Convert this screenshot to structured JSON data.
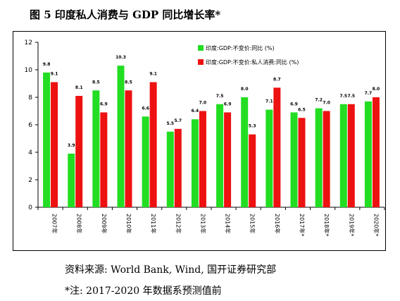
{
  "title": "图 5 印度私人消费与 GDP 同比增长率*",
  "source": "资料来源: World Bank, Wind, 国开证券研究部",
  "note": "*注: 2017-2020 年数据系预测值前",
  "chart_data": {
    "type": "bar",
    "categories": [
      "2007年",
      "2008年",
      "2009年",
      "2010年",
      "2011年",
      "2012年",
      "2013年",
      "2014年",
      "2015年",
      "2016年",
      "2017年*",
      "2018年*",
      "2019年*",
      "2020年*"
    ],
    "series": [
      {
        "name": "印度:GDP:不变价:同比 (%)",
        "color": "#22dd22",
        "values": [
          9.8,
          3.9,
          8.5,
          10.3,
          6.6,
          5.5,
          6.4,
          7.5,
          8.0,
          7.1,
          6.9,
          7.2,
          7.5,
          7.7
        ]
      },
      {
        "name": "印度:GDP:不变价:私人消费:同比 (%)",
        "color": "#ee1111",
        "values": [
          9.1,
          8.1,
          6.9,
          8.5,
          9.1,
          5.7,
          7.0,
          6.9,
          5.3,
          8.7,
          6.5,
          7.0,
          7.5,
          8.0
        ]
      }
    ],
    "ylim": [
      0,
      12
    ],
    "yticks": [
      0,
      2,
      4,
      6,
      8,
      10,
      12
    ],
    "data_labels": true,
    "grid": false,
    "legend_position": "top-right"
  }
}
